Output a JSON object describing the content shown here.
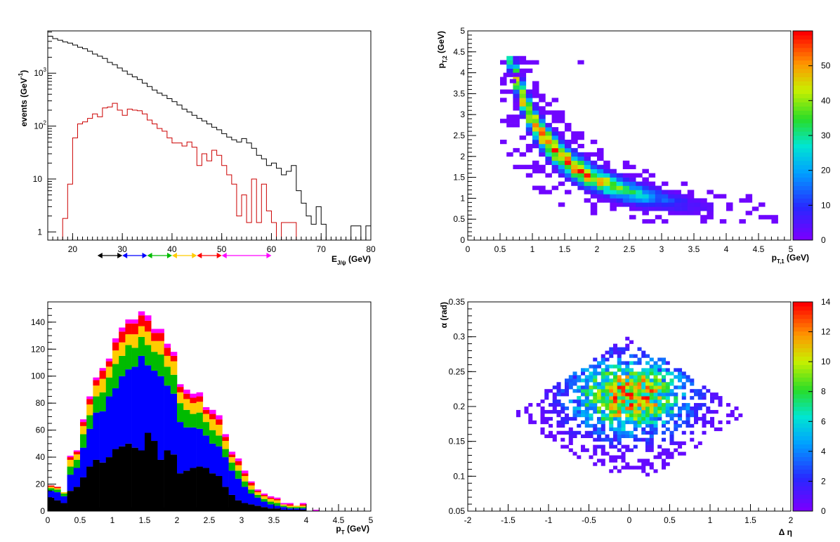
{
  "chart_data": [
    {
      "id": "tl",
      "type": "histogram-step",
      "xlabel": "E",
      "xlabel_sub": "J/ψ",
      "xlabel_unit": " (GeV)",
      "ylabel": "events (GeV",
      "ylabel_sup": "-1",
      "ylabel_end": ")",
      "xlim": [
        15,
        80
      ],
      "ylim": [
        0.7,
        6300
      ],
      "yscale": "log",
      "xticks": [
        "20",
        "30",
        "40",
        "50",
        "60",
        "70",
        "80"
      ],
      "xtick_values": [
        20,
        30,
        40,
        50,
        60,
        70,
        80
      ],
      "yticks": [
        "1",
        "10",
        "10",
        "10"
      ],
      "ytick_sups": [
        "",
        "",
        "2",
        "3"
      ],
      "ytick_values": [
        1,
        10,
        100,
        1000
      ],
      "bin_edges_start": 15,
      "bin_width": 1,
      "series": [
        {
          "color": "#000000",
          "values": [
            5000,
            4500,
            4200,
            3900,
            3700,
            3400,
            3100,
            2900,
            2600,
            2300,
            2100,
            1900,
            1600,
            1450,
            1250,
            1100,
            950,
            850,
            760,
            650,
            560,
            480,
            420,
            380,
            330,
            290,
            250,
            210,
            185,
            160,
            140,
            125,
            110,
            95,
            85,
            72,
            62,
            55,
            50,
            58,
            48,
            38,
            28,
            24,
            18,
            20,
            16,
            12,
            14,
            18,
            6,
            3.5,
            2,
            1.4,
            3,
            1.4,
            0.7,
            0.7,
            0.7,
            0.7,
            0.7,
            1.3,
            1.3,
            0.7,
            1.3
          ]
        },
        {
          "color": "#cc0000",
          "values": [
            0.7,
            0.7,
            0.7,
            1.8,
            8,
            60,
            110,
            120,
            140,
            170,
            150,
            220,
            230,
            270,
            200,
            160,
            210,
            200,
            195,
            170,
            130,
            110,
            90,
            80,
            60,
            48,
            48,
            42,
            50,
            40,
            18,
            30,
            22,
            35,
            28,
            18,
            12,
            8,
            2,
            5,
            1.5,
            10,
            1.5,
            8,
            2.5,
            1.5,
            0.7,
            1.5,
            1.5,
            1.5,
            0.7,
            0.7,
            0.7,
            0.7,
            0.7,
            0.7,
            0.7,
            0.7,
            0.7,
            0.7,
            0.7,
            0.7,
            0.7,
            0.7,
            0.7
          ]
        }
      ],
      "energy_bins": [
        {
          "from": 25,
          "to": 30,
          "color": "#000000"
        },
        {
          "from": 30,
          "to": 35,
          "color": "#0000ff"
        },
        {
          "from": 35,
          "to": 40,
          "color": "#00bb00"
        },
        {
          "from": 40,
          "to": 45,
          "color": "#ffcc00"
        },
        {
          "from": 45,
          "to": 50,
          "color": "#ff0000"
        },
        {
          "from": 50,
          "to": 60,
          "color": "#ff00ff"
        }
      ]
    },
    {
      "id": "tr",
      "type": "heatmap",
      "xlabel": "p",
      "xlabel_sub": "T,1",
      "xlabel_unit": " (GeV)",
      "ylabel": "p",
      "ylabel_sub": "T,2",
      "ylabel_unit": " (GeV)",
      "xlim": [
        0,
        5
      ],
      "ylim": [
        0,
        5
      ],
      "xticks": [
        "0",
        "0.5",
        "1",
        "1.5",
        "2",
        "2.5",
        "3",
        "3.5",
        "4",
        "4.5",
        "5"
      ],
      "yticks": [
        "0",
        "0.5",
        "1",
        "1.5",
        "2",
        "2.5",
        "3",
        "3.5",
        "4",
        "4.5",
        "5"
      ],
      "zlim": [
        0,
        60
      ],
      "zticks": [
        "0",
        "10",
        "20",
        "30",
        "40",
        "50"
      ],
      "description": "density concentrated along hyperbola pT2 ≈ 3/pT1 band"
    },
    {
      "id": "bl",
      "type": "stacked-histogram",
      "xlabel": "p",
      "xlabel_sub": "T",
      "xlabel_unit": " (GeV)",
      "xlim": [
        0,
        5
      ],
      "ylim": [
        0,
        155
      ],
      "xticks": [
        "0",
        "0.5",
        "1",
        "1.5",
        "2",
        "2.5",
        "3",
        "3.5",
        "4",
        "4.5",
        "5"
      ],
      "yticks": [
        "0",
        "20",
        "40",
        "60",
        "80",
        "100",
        "120",
        "140"
      ],
      "bin_width": 0.1,
      "colors": [
        "#000000",
        "#0000ff",
        "#00bb00",
        "#ffcc00",
        "#ff0000",
        "#ff00ff"
      ],
      "series": [
        {
          "name": "25-30",
          "values": [
            10,
            8,
            6,
            15,
            18,
            25,
            33,
            38,
            36,
            40,
            46,
            48,
            50,
            47,
            45,
            58,
            52,
            38,
            45,
            42,
            28,
            30,
            32,
            33,
            32,
            28,
            26,
            18,
            12,
            8,
            6,
            5,
            4,
            3,
            2,
            2,
            1,
            1,
            1,
            1,
            0,
            0,
            0,
            0,
            0,
            0,
            0,
            0,
            0,
            0
          ]
        },
        {
          "name": "30-35",
          "values": [
            5,
            6,
            5,
            12,
            14,
            22,
            28,
            35,
            38,
            45,
            45,
            52,
            55,
            60,
            70,
            50,
            52,
            62,
            48,
            45,
            38,
            32,
            30,
            28,
            24,
            22,
            22,
            22,
            18,
            16,
            12,
            8,
            6,
            4,
            3,
            2,
            2,
            1,
            1,
            1,
            0,
            0,
            0,
            0,
            0,
            0,
            0,
            0,
            0,
            0
          ]
        },
        {
          "name": "35-40",
          "values": [
            2,
            2,
            2,
            6,
            6,
            10,
            10,
            12,
            14,
            14,
            18,
            15,
            18,
            14,
            14,
            15,
            14,
            16,
            14,
            14,
            14,
            13,
            10,
            12,
            10,
            10,
            8,
            6,
            6,
            6,
            4,
            3,
            2,
            2,
            2,
            2,
            1,
            1,
            1,
            1,
            0,
            0,
            0,
            0,
            0,
            0,
            0,
            0,
            0,
            0
          ]
        },
        {
          "name": "40-45",
          "values": [
            1,
            1,
            1,
            5,
            4,
            6,
            8,
            8,
            10,
            8,
            10,
            10,
            8,
            10,
            8,
            10,
            8,
            10,
            8,
            10,
            8,
            8,
            8,
            8,
            6,
            8,
            8,
            6,
            4,
            4,
            4,
            3,
            2,
            2,
            2,
            2,
            1,
            1,
            1,
            1,
            0,
            0,
            0,
            0,
            0,
            0,
            0,
            0,
            0,
            0
          ]
        },
        {
          "name": "45-50",
          "values": [
            1,
            1,
            0,
            2,
            2,
            3,
            4,
            4,
            6,
            4,
            6,
            8,
            8,
            8,
            8,
            8,
            6,
            6,
            6,
            4,
            4,
            4,
            4,
            4,
            3,
            4,
            4,
            3,
            2,
            3,
            2,
            2,
            1,
            1,
            1,
            1,
            0,
            1,
            0,
            1,
            0,
            0,
            0,
            0,
            0,
            0,
            0,
            0,
            0,
            0
          ]
        },
        {
          "name": "50-60",
          "values": [
            0,
            0,
            0,
            1,
            1,
            2,
            2,
            2,
            2,
            2,
            3,
            3,
            3,
            3,
            3,
            4,
            3,
            3,
            3,
            3,
            2,
            3,
            3,
            3,
            2,
            3,
            3,
            2,
            2,
            2,
            2,
            1,
            1,
            1,
            1,
            1,
            1,
            1,
            0,
            1,
            0,
            1,
            0,
            0,
            0,
            0,
            0,
            0,
            0,
            0
          ]
        }
      ]
    },
    {
      "id": "br",
      "type": "heatmap",
      "xlabel": "Δ η",
      "ylabel": "α (rad)",
      "xlim": [
        -2,
        2
      ],
      "ylim": [
        0.05,
        0.35
      ],
      "xticks": [
        "-2",
        "-1.5",
        "-1",
        "-0.5",
        "0",
        "0.5",
        "1",
        "1.5",
        "2"
      ],
      "yticks": [
        "0.05",
        "0.1",
        "0.15",
        "0.2",
        "0.25",
        "0.3",
        "0.35"
      ],
      "zlim": [
        0,
        14
      ],
      "zticks": [
        "0",
        "2",
        "4",
        "6",
        "8",
        "10",
        "12",
        "14"
      ],
      "description": "diamond-shaped occupancy centred at Δη=0, α≈0.2"
    }
  ]
}
